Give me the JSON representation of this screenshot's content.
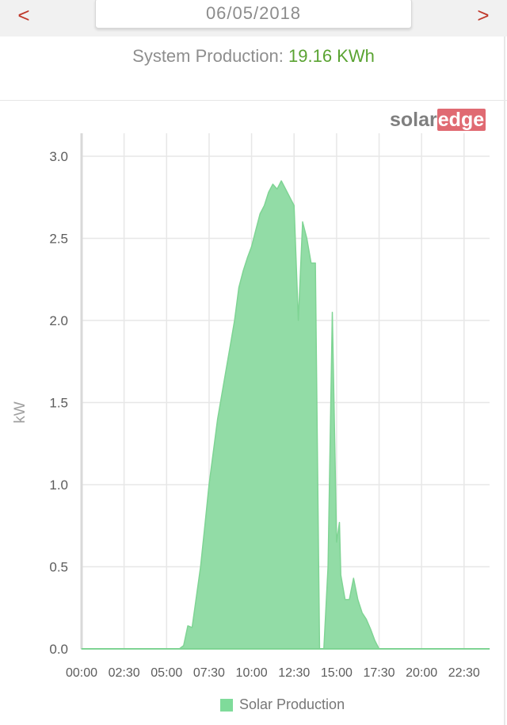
{
  "header": {
    "prev_label": "<",
    "next_label": ">",
    "date": "06/05/2018"
  },
  "summary": {
    "label": "System Production: ",
    "value": "19.16 KWh"
  },
  "logo": {
    "part1": "solar",
    "part2": "edge"
  },
  "colors": {
    "accent_red": "#c0392b",
    "value_green": "#5aa332",
    "area_fill": "#92dca6",
    "area_stroke": "#7fd494",
    "logo_pink": "#e06a72"
  },
  "chart_data": {
    "type": "area",
    "title": "",
    "xlabel": "",
    "ylabel": "kW",
    "ylim": [
      0,
      3.0
    ],
    "yticks": [
      "0.0",
      "0.5",
      "1.0",
      "1.5",
      "2.0",
      "2.5",
      "3.0"
    ],
    "xticks": [
      "00:00",
      "02:30",
      "05:00",
      "07:30",
      "10:00",
      "12:30",
      "15:00",
      "17:30",
      "20:00",
      "22:30"
    ],
    "grid": true,
    "legend_position": "bottom",
    "series": [
      {
        "name": "Solar Production",
        "x": [
          "00:00",
          "05:00",
          "05:45",
          "06:00",
          "06:15",
          "06:30",
          "07:00",
          "07:15",
          "07:30",
          "07:45",
          "08:00",
          "08:30",
          "08:45",
          "09:00",
          "09:15",
          "09:30",
          "09:45",
          "10:00",
          "10:15",
          "10:30",
          "10:45",
          "11:00",
          "11:15",
          "11:30",
          "11:45",
          "12:00",
          "12:15",
          "12:30",
          "12:45",
          "13:00",
          "13:15",
          "13:30",
          "13:45",
          "14:00",
          "14:15",
          "14:30",
          "14:45",
          "15:00",
          "15:10",
          "15:15",
          "15:30",
          "15:45",
          "16:00",
          "16:15",
          "16:30",
          "16:45",
          "17:00",
          "17:15",
          "17:30",
          "17:45",
          "18:00",
          "18:15",
          "18:45",
          "23:59"
        ],
        "y": [
          0.0,
          0.0,
          0.0,
          0.02,
          0.14,
          0.13,
          0.5,
          0.75,
          1.0,
          1.2,
          1.4,
          1.7,
          1.85,
          2.0,
          2.2,
          2.3,
          2.38,
          2.45,
          2.55,
          2.65,
          2.7,
          2.78,
          2.83,
          2.8,
          2.85,
          2.8,
          2.75,
          2.7,
          2.0,
          2.6,
          2.5,
          2.35,
          2.35,
          0.0,
          0.0,
          0.5,
          2.05,
          0.65,
          0.77,
          0.45,
          0.3,
          0.3,
          0.43,
          0.3,
          0.22,
          0.18,
          0.12,
          0.05,
          0.0,
          0.0,
          0.0,
          0.0,
          0.0,
          0.0
        ]
      }
    ]
  }
}
